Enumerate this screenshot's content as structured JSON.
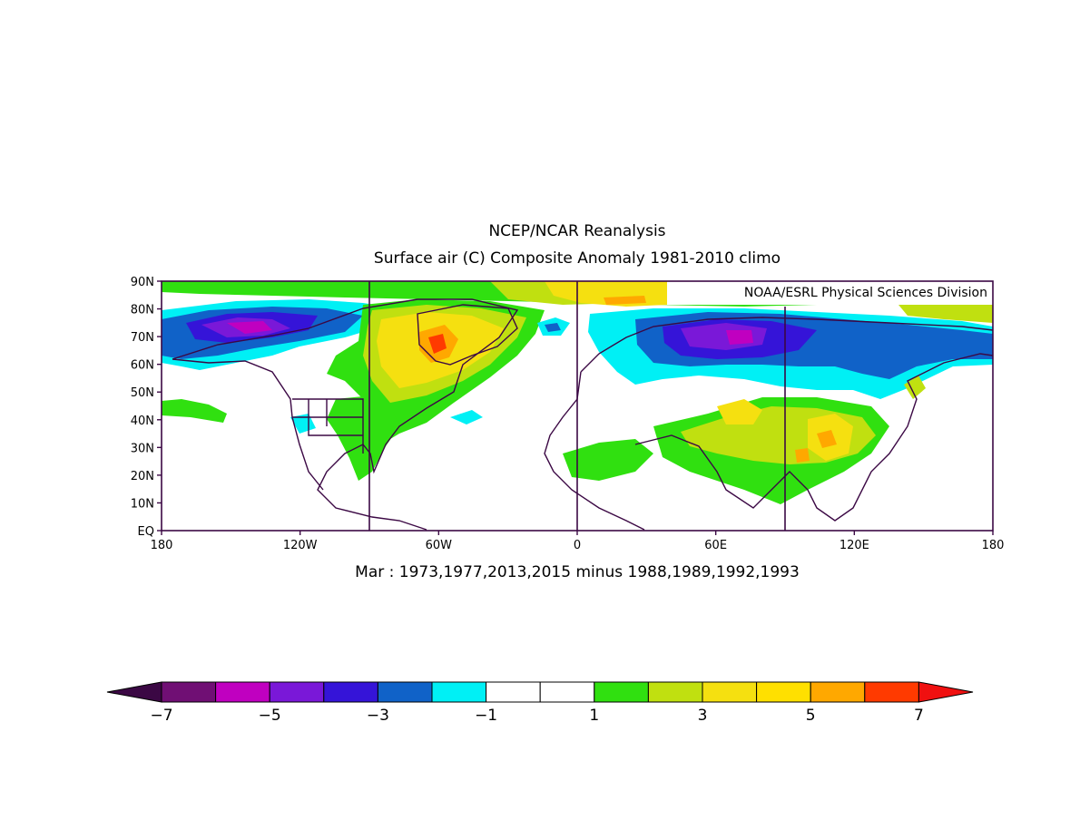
{
  "title": "NCEP/NCAR Reanalysis",
  "subtitle": "Surface air (C) Composite Anomaly 1981-2010 climo",
  "credit": "NOAA/ESRL Physical Sciences Division",
  "caption": "Mar : 1973,1977,2013,2015 minus 1988,1989,1992,1993",
  "map": {
    "region": "Northern Hemisphere, EQ to 90N",
    "lon_range": [
      -180,
      180
    ],
    "lat_range": [
      0,
      90
    ],
    "lat_labels": [
      "90N",
      "80N",
      "70N",
      "60N",
      "50N",
      "40N",
      "30N",
      "20N",
      "10N",
      "EQ"
    ],
    "lat_values": [
      90,
      80,
      70,
      60,
      50,
      40,
      30,
      20,
      10,
      0
    ],
    "lon_labels": [
      "180",
      "120W",
      "60W",
      "0",
      "60E",
      "120E",
      "180"
    ],
    "lon_values": [
      -180,
      -120,
      -60,
      0,
      60,
      120,
      180
    ],
    "reference_meridians": [
      -90,
      0,
      90
    ]
  },
  "colorbar": {
    "labels": [
      "-7",
      "-5",
      "-3",
      "-1",
      "1",
      "3",
      "5",
      "7"
    ],
    "colors": [
      "#3b0844",
      "#700f74",
      "#c000c0",
      "#7a18d8",
      "#3514d8",
      "#1062c8",
      "#00f0f5",
      "#ffffff",
      "#ffffff",
      "#30e010",
      "#c0e010",
      "#f5e010",
      "#ffe000",
      "#ffa800",
      "#ff3a00",
      "#f01010"
    ]
  },
  "anomaly_regions": [
    {
      "name": "alaska-siberia-cold",
      "level": -4
    },
    {
      "name": "greenland-warm",
      "level": 4
    },
    {
      "name": "russia-cold",
      "level": -4
    },
    {
      "name": "central-asia-warm",
      "level": 3
    }
  ]
}
